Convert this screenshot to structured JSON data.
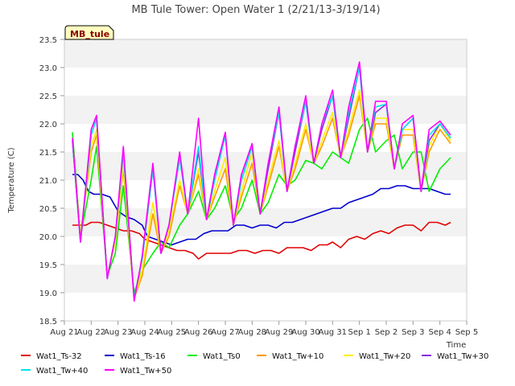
{
  "chart_data": {
    "type": "line",
    "title": "MB Tule Tower: Open Water 1 (2/21/13-3/19/14)",
    "xlabel": "Time",
    "ylabel": "Temperature (C)",
    "site_label": "MB_tule",
    "ylim": [
      18.5,
      23.5
    ],
    "xlim": [
      0,
      15
    ],
    "y_ticks": [
      "18.5",
      "19.0",
      "19.5",
      "20.0",
      "20.5",
      "21.0",
      "21.5",
      "22.0",
      "22.5",
      "23.0",
      "23.5"
    ],
    "x_ticks": [
      "Aug 21",
      "Aug 22",
      "Aug 23",
      "Aug 24",
      "Aug 25",
      "Aug 26",
      "Aug 27",
      "Aug 28",
      "Aug 29",
      "Aug 30",
      "Aug 31",
      "Sep 1",
      "Sep 2",
      "Sep 3",
      "Sep 4",
      "Sep 5"
    ],
    "grid": "horizontal bands",
    "legend_position": "bottom",
    "series": [
      {
        "name": "Wat1_Ts-32",
        "color": "#e00000",
        "x": [
          0.3,
          0.5,
          0.8,
          1.0,
          1.3,
          1.6,
          1.9,
          2.2,
          2.5,
          2.8,
          3.0,
          3.3,
          3.6,
          3.9,
          4.2,
          4.5,
          4.8,
          5.0,
          5.3,
          5.6,
          5.9,
          6.2,
          6.5,
          6.8,
          7.1,
          7.4,
          7.7,
          8.0,
          8.3,
          8.6,
          8.9,
          9.2,
          9.5,
          9.8,
          10.0,
          10.3,
          10.6,
          10.9,
          11.2,
          11.5,
          11.8,
          12.1,
          12.4,
          12.7,
          13.0,
          13.3,
          13.6,
          13.9,
          14.2,
          14.4
        ],
        "values": [
          20.2,
          20.2,
          20.2,
          20.25,
          20.25,
          20.2,
          20.15,
          20.1,
          20.1,
          20.05,
          19.95,
          19.9,
          19.85,
          19.8,
          19.75,
          19.75,
          19.7,
          19.6,
          19.7,
          19.7,
          19.7,
          19.7,
          19.75,
          19.75,
          19.7,
          19.75,
          19.75,
          19.7,
          19.8,
          19.8,
          19.8,
          19.75,
          19.85,
          19.85,
          19.9,
          19.8,
          19.95,
          20.0,
          19.95,
          20.05,
          20.1,
          20.05,
          20.15,
          20.2,
          20.2,
          20.1,
          20.25,
          20.25,
          20.2,
          20.25
        ]
      },
      {
        "name": "Wat1_Ts-16",
        "color": "#0000cc",
        "x": [
          0.3,
          0.5,
          0.7,
          0.9,
          1.1,
          1.4,
          1.7,
          2.0,
          2.3,
          2.6,
          2.9,
          3.1,
          3.4,
          3.7,
          4.0,
          4.3,
          4.6,
          4.9,
          5.2,
          5.5,
          5.8,
          6.1,
          6.4,
          6.7,
          7.0,
          7.3,
          7.6,
          7.9,
          8.2,
          8.5,
          8.8,
          9.1,
          9.4,
          9.7,
          10.0,
          10.3,
          10.6,
          10.9,
          11.2,
          11.5,
          11.8,
          12.1,
          12.4,
          12.7,
          13.0,
          13.3,
          13.6,
          13.9,
          14.2,
          14.4
        ],
        "values": [
          21.1,
          21.1,
          21.0,
          20.8,
          20.75,
          20.75,
          20.7,
          20.45,
          20.35,
          20.3,
          20.2,
          20.0,
          19.95,
          19.9,
          19.85,
          19.9,
          19.95,
          19.95,
          20.05,
          20.1,
          20.1,
          20.1,
          20.2,
          20.2,
          20.15,
          20.2,
          20.2,
          20.15,
          20.25,
          20.25,
          20.3,
          20.35,
          20.4,
          20.45,
          20.5,
          20.5,
          20.6,
          20.65,
          20.7,
          20.75,
          20.85,
          20.85,
          20.9,
          20.9,
          20.85,
          20.85,
          20.85,
          20.8,
          20.75,
          20.75
        ]
      },
      {
        "name": "Wat1_Ts0",
        "color": "#00ee00",
        "x": [
          0.3,
          0.6,
          1.0,
          1.2,
          1.6,
          1.9,
          2.2,
          2.6,
          2.9,
          3.3,
          3.6,
          3.9,
          4.3,
          4.6,
          5.0,
          5.3,
          5.6,
          6.0,
          6.3,
          6.6,
          7.0,
          7.3,
          7.6,
          8.0,
          8.3,
          8.6,
          9.0,
          9.3,
          9.6,
          10.0,
          10.3,
          10.6,
          11.0,
          11.3,
          11.6,
          12.0,
          12.3,
          12.6,
          13.0,
          13.3,
          13.6,
          14.0,
          14.4
        ],
        "values": [
          21.85,
          20.0,
          21.0,
          21.6,
          19.3,
          19.7,
          20.9,
          19.0,
          19.4,
          19.7,
          19.9,
          19.8,
          20.2,
          20.4,
          20.8,
          20.3,
          20.5,
          20.9,
          20.3,
          20.5,
          21.0,
          20.4,
          20.6,
          21.1,
          20.9,
          21.0,
          21.35,
          21.3,
          21.2,
          21.5,
          21.4,
          21.3,
          21.9,
          22.1,
          21.5,
          21.7,
          21.8,
          21.2,
          21.5,
          21.5,
          20.8,
          21.2,
          21.4
        ]
      },
      {
        "name": "Wat1_Tw+10",
        "color": "#ff9900",
        "x": [
          0.3,
          0.6,
          1.0,
          1.2,
          1.6,
          1.9,
          2.2,
          2.6,
          2.9,
          3.3,
          3.6,
          3.9,
          4.3,
          4.6,
          5.0,
          5.3,
          5.6,
          6.0,
          6.3,
          6.6,
          7.0,
          7.3,
          7.6,
          8.0,
          8.3,
          8.6,
          9.0,
          9.3,
          9.6,
          10.0,
          10.3,
          10.6,
          11.0,
          11.3,
          11.6,
          12.0,
          12.3,
          12.6,
          13.0,
          13.3,
          13.6,
          14.0,
          14.4
        ],
        "values": [
          21.7,
          20.0,
          21.5,
          21.8,
          19.3,
          19.9,
          21.2,
          18.9,
          19.3,
          20.4,
          19.7,
          20.0,
          20.9,
          20.4,
          21.1,
          20.3,
          20.7,
          21.2,
          20.2,
          20.7,
          21.3,
          20.4,
          20.9,
          21.6,
          20.8,
          21.2,
          21.9,
          21.3,
          21.6,
          22.1,
          21.4,
          21.8,
          22.5,
          21.5,
          22.0,
          22.0,
          21.2,
          21.8,
          21.8,
          20.8,
          21.5,
          21.9,
          21.65
        ]
      },
      {
        "name": "Wat1_Tw+20",
        "color": "#ffee00",
        "x": [
          0.3,
          0.6,
          1.0,
          1.2,
          1.6,
          1.9,
          2.2,
          2.6,
          2.9,
          3.3,
          3.6,
          3.9,
          4.3,
          4.6,
          5.0,
          5.3,
          5.6,
          6.0,
          6.3,
          6.6,
          7.0,
          7.3,
          7.6,
          8.0,
          8.3,
          8.6,
          9.0,
          9.3,
          9.6,
          10.0,
          10.3,
          10.6,
          11.0,
          11.3,
          11.6,
          12.0,
          12.3,
          12.6,
          13.0,
          13.3,
          13.6,
          14.0,
          14.4
        ],
        "values": [
          21.7,
          20.0,
          21.6,
          21.9,
          19.3,
          19.9,
          21.3,
          18.9,
          19.4,
          20.6,
          19.7,
          20.1,
          21.0,
          20.4,
          21.2,
          20.3,
          20.8,
          21.4,
          20.2,
          20.8,
          21.5,
          20.4,
          21.0,
          21.7,
          20.8,
          21.3,
          22.0,
          21.3,
          21.7,
          22.2,
          21.4,
          21.9,
          22.6,
          21.5,
          22.1,
          22.1,
          21.2,
          21.9,
          21.9,
          20.8,
          21.6,
          22.0,
          21.7
        ]
      },
      {
        "name": "Wat1_Tw+30",
        "color": "#8a2be2",
        "x": [
          0.3,
          0.6,
          1.0,
          1.2,
          1.6,
          1.9,
          2.2,
          2.6,
          2.9,
          3.3,
          3.6,
          3.9,
          4.3,
          4.6,
          5.0,
          5.3,
          5.6,
          6.0,
          6.3,
          6.6,
          7.0,
          7.3,
          7.6,
          8.0,
          8.3,
          8.6,
          9.0,
          9.3,
          9.6,
          10.0,
          10.3,
          10.6,
          11.0,
          11.3,
          11.6,
          12.0,
          12.3,
          12.6,
          13.0,
          13.3,
          13.6,
          14.0,
          14.4
        ],
        "values": [
          21.7,
          19.9,
          21.8,
          22.1,
          19.25,
          20.0,
          21.5,
          18.9,
          19.6,
          21.2,
          19.7,
          20.2,
          21.4,
          20.4,
          21.5,
          20.3,
          21.0,
          21.8,
          20.2,
          21.0,
          21.6,
          20.4,
          21.2,
          22.2,
          20.8,
          21.5,
          22.4,
          21.3,
          21.9,
          22.5,
          21.4,
          22.1,
          23.0,
          21.5,
          22.2,
          22.35,
          21.2,
          21.9,
          22.1,
          20.8,
          21.7,
          22.0,
          21.75
        ]
      },
      {
        "name": "Wat1_Tw+40",
        "color": "#00e5ee",
        "x": [
          0.3,
          0.6,
          1.0,
          1.2,
          1.6,
          1.9,
          2.2,
          2.6,
          2.9,
          3.3,
          3.6,
          3.9,
          4.3,
          4.6,
          5.0,
          5.3,
          5.6,
          6.0,
          6.3,
          6.6,
          7.0,
          7.3,
          7.6,
          8.0,
          8.3,
          8.6,
          9.0,
          9.3,
          9.6,
          10.0,
          10.3,
          10.6,
          11.0,
          11.3,
          11.6,
          12.0,
          12.3,
          12.6,
          13.0,
          13.3,
          13.6,
          14.0,
          14.4
        ],
        "values": [
          21.7,
          19.9,
          21.8,
          22.1,
          19.25,
          20.0,
          21.5,
          18.9,
          19.6,
          21.2,
          19.7,
          20.2,
          21.4,
          20.4,
          21.6,
          20.3,
          21.0,
          21.8,
          20.2,
          21.0,
          21.6,
          20.4,
          21.3,
          22.2,
          20.8,
          21.6,
          22.4,
          21.3,
          22.0,
          22.5,
          21.4,
          22.2,
          23.0,
          21.5,
          22.3,
          22.35,
          21.2,
          21.9,
          22.1,
          20.8,
          21.8,
          22.0,
          21.75
        ]
      },
      {
        "name": "Wat1_Tw+50",
        "color": "#ff00ff",
        "x": [
          0.3,
          0.6,
          1.0,
          1.2,
          1.6,
          1.9,
          2.2,
          2.6,
          2.9,
          3.3,
          3.6,
          3.9,
          4.3,
          4.6,
          5.0,
          5.3,
          5.6,
          6.0,
          6.3,
          6.6,
          7.0,
          7.3,
          7.6,
          8.0,
          8.3,
          8.6,
          9.0,
          9.3,
          9.6,
          10.0,
          10.3,
          10.6,
          11.0,
          11.3,
          11.6,
          12.0,
          12.3,
          12.6,
          13.0,
          13.3,
          13.6,
          14.0,
          14.4
        ],
        "values": [
          21.75,
          19.9,
          21.9,
          22.15,
          19.25,
          20.0,
          21.6,
          18.85,
          19.65,
          21.3,
          19.7,
          20.2,
          21.5,
          20.4,
          22.1,
          20.3,
          21.1,
          21.85,
          20.2,
          21.1,
          21.65,
          20.4,
          21.3,
          22.3,
          20.8,
          21.6,
          22.5,
          21.3,
          22.0,
          22.6,
          21.4,
          22.3,
          23.1,
          21.5,
          22.4,
          22.4,
          21.2,
          22.0,
          22.15,
          20.8,
          21.9,
          22.05,
          21.8
        ]
      }
    ]
  }
}
